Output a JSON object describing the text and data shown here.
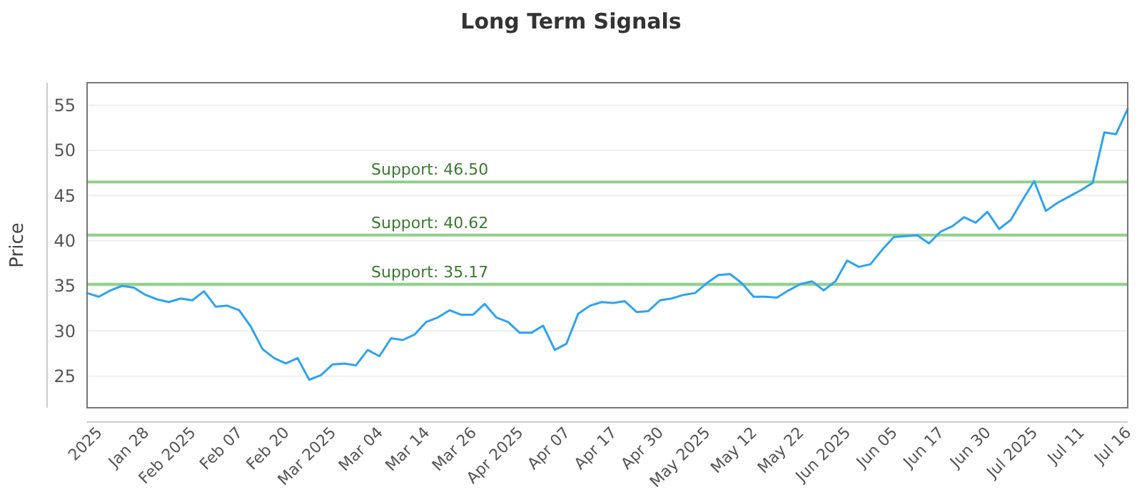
{
  "chart_data": {
    "type": "line",
    "title": "Long Term Signals",
    "ylabel": "Price",
    "categories": [
      null,
      "2025",
      null,
      null,
      null,
      "Jan 28",
      null,
      null,
      null,
      "Feb 2025",
      null,
      null,
      null,
      "Feb 07",
      null,
      null,
      null,
      "Feb 20",
      null,
      null,
      null,
      "Mar 2025",
      null,
      null,
      null,
      "Mar 04",
      null,
      null,
      null,
      "Mar 14",
      null,
      null,
      null,
      "Mar 26",
      null,
      null,
      null,
      "Apr 2025",
      null,
      null,
      null,
      "Apr 07",
      null,
      null,
      null,
      "Apr 17",
      null,
      null,
      null,
      "Apr 30",
      null,
      null,
      null,
      "May 2025",
      null,
      null,
      null,
      "May 12",
      null,
      null,
      null,
      "May 22",
      null,
      null,
      null,
      "Jun 2025",
      null,
      null,
      null,
      "Jun 05",
      null,
      null,
      null,
      "Jun 17",
      null,
      null,
      null,
      "Jun 30",
      null,
      null,
      null,
      "Jul 2025",
      null,
      null,
      null,
      "Jul 11",
      null,
      null,
      null,
      "Jul 16"
    ],
    "series": [
      {
        "color": "#2ea3f2",
        "values": [
          34.2,
          33.8,
          34.5,
          35.0,
          34.8,
          34.0,
          33.5,
          33.2,
          33.6,
          33.4,
          34.4,
          32.7,
          32.8,
          32.3,
          30.5,
          28.0,
          27.0,
          26.4,
          27.0,
          24.6,
          25.1,
          26.3,
          26.4,
          26.2,
          27.9,
          27.2,
          29.2,
          29.0,
          29.6,
          31.0,
          31.5,
          32.3,
          31.8,
          31.8,
          33.0,
          31.5,
          31.0,
          29.8,
          29.8,
          30.6,
          27.9,
          28.6,
          31.9,
          32.8,
          33.2,
          33.1,
          33.3,
          32.1,
          32.2,
          33.4,
          33.6,
          34.0,
          34.2,
          35.3,
          36.2,
          36.3,
          35.3,
          33.8,
          33.8,
          33.7,
          34.5,
          35.2,
          35.5,
          34.5,
          35.5,
          37.8,
          37.1,
          37.4,
          39.0,
          40.4,
          40.5,
          40.6,
          39.7,
          41.0,
          41.6,
          42.6,
          42.0,
          43.2,
          41.3,
          42.3,
          44.5,
          46.6,
          43.3,
          44.2,
          44.9,
          45.6,
          46.4,
          52.0,
          51.8,
          54.6
        ]
      }
    ],
    "ylim": [
      21.5,
      57.5
    ],
    "yticks": [
      25,
      30,
      35,
      40,
      45,
      50,
      55
    ],
    "grid": "y",
    "ref_lines": [
      {
        "axis": "y",
        "value": 46.5,
        "label": "Support: 46.50",
        "color": "#8fd18a"
      },
      {
        "axis": "y",
        "value": 40.62,
        "label": "Support: 40.62",
        "color": "#8fd18a"
      },
      {
        "axis": "y",
        "value": 35.17,
        "label": "Support: 35.17",
        "color": "#8fd18a"
      }
    ]
  }
}
